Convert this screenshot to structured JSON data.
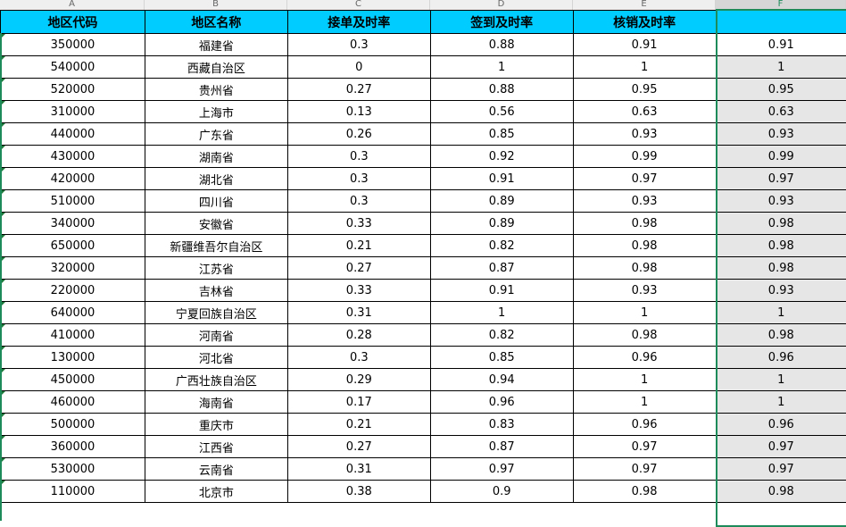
{
  "columns": [
    "A",
    "B",
    "C",
    "D",
    "E",
    "F"
  ],
  "headers": [
    "地区代码",
    "地区名称",
    "接单及时率",
    "签到及时率",
    "核销及时率",
    ""
  ],
  "rows": [
    [
      "350000",
      "福建省",
      "0.3",
      "0.88",
      "0.91",
      "0.91"
    ],
    [
      "540000",
      "西藏自治区",
      "0",
      "1",
      "1",
      "1"
    ],
    [
      "520000",
      "贵州省",
      "0.27",
      "0.88",
      "0.95",
      "0.95"
    ],
    [
      "310000",
      "上海市",
      "0.13",
      "0.56",
      "0.63",
      "0.63"
    ],
    [
      "440000",
      "广东省",
      "0.26",
      "0.85",
      "0.93",
      "0.93"
    ],
    [
      "430000",
      "湖南省",
      "0.3",
      "0.92",
      "0.99",
      "0.99"
    ],
    [
      "420000",
      "湖北省",
      "0.3",
      "0.91",
      "0.97",
      "0.97"
    ],
    [
      "510000",
      "四川省",
      "0.3",
      "0.89",
      "0.93",
      "0.93"
    ],
    [
      "340000",
      "安徽省",
      "0.33",
      "0.89",
      "0.98",
      "0.98"
    ],
    [
      "650000",
      "新疆维吾尔自治区",
      "0.21",
      "0.82",
      "0.98",
      "0.98"
    ],
    [
      "320000",
      "江苏省",
      "0.27",
      "0.87",
      "0.98",
      "0.98"
    ],
    [
      "220000",
      "吉林省",
      "0.33",
      "0.91",
      "0.93",
      "0.93"
    ],
    [
      "640000",
      "宁夏回族自治区",
      "0.31",
      "1",
      "1",
      "1"
    ],
    [
      "410000",
      "河南省",
      "0.28",
      "0.82",
      "0.98",
      "0.98"
    ],
    [
      "130000",
      "河北省",
      "0.3",
      "0.85",
      "0.96",
      "0.96"
    ],
    [
      "450000",
      "广西壮族自治区",
      "0.29",
      "0.94",
      "1",
      "1"
    ],
    [
      "460000",
      "海南省",
      "0.17",
      "0.96",
      "1",
      "1"
    ],
    [
      "500000",
      "重庆市",
      "0.21",
      "0.83",
      "0.96",
      "0.96"
    ],
    [
      "360000",
      "江西省",
      "0.27",
      "0.87",
      "0.97",
      "0.97"
    ],
    [
      "530000",
      "云南省",
      "0.31",
      "0.97",
      "0.97",
      "0.97"
    ],
    [
      "110000",
      "北京市",
      "0.38",
      "0.9",
      "0.98",
      "0.98"
    ]
  ],
  "colors": {
    "header_bg": "#00ccff",
    "selection": "#1e8c5a",
    "selected_fill": "#e6e6e6"
  }
}
